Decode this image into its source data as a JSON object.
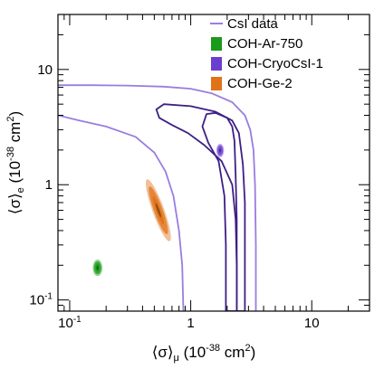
{
  "chart_data": {
    "type": "contour",
    "x_axis": {
      "label_main": "⟨σ⟩",
      "label_sub": "μ",
      "label_units": " (10",
      "label_exp": "-38",
      "label_tail": " cm",
      "label_tail_exp": "2",
      "label_close": ")",
      "scale": "log",
      "range": [
        0.08,
        30
      ],
      "major_ticks": [
        0.1,
        1,
        10
      ],
      "tick_labels": [
        "10",
        "1",
        "10"
      ],
      "tick_label_exps": [
        "-1",
        "",
        ""
      ]
    },
    "y_axis": {
      "label_main": "⟨σ⟩",
      "label_sub": "e",
      "label_units": " (10",
      "label_exp": "-38",
      "label_tail": " cm",
      "label_tail_exp": "2",
      "label_close": ")",
      "scale": "log",
      "range": [
        0.08,
        30
      ],
      "major_ticks": [
        0.1,
        1,
        10
      ],
      "tick_labels": [
        "10",
        "1",
        "10"
      ],
      "tick_label_exps": [
        "-1",
        "",
        ""
      ]
    },
    "legend": {
      "position": "top-right",
      "entries": [
        {
          "label": "CsI data",
          "kind": "line",
          "color": "#9a7de0"
        },
        {
          "label": "COH-Ar-750",
          "kind": "fill",
          "color": "#1a9a1a"
        },
        {
          "label": "COH-CryoCsI-1",
          "kind": "fill",
          "color": "#6a3fd0"
        },
        {
          "label": "COH-Ge-2",
          "kind": "fill",
          "color": "#e0731a"
        }
      ]
    },
    "series": [
      {
        "name": "CsI data",
        "kind": "contours",
        "contours": [
          {
            "level": "outer",
            "color": "#9a7de0",
            "points": [
              [
                0.08,
                7.3
              ],
              [
                0.15,
                7.3
              ],
              [
                0.3,
                7.25
              ],
              [
                0.6,
                7.1
              ],
              [
                1.0,
                6.8
              ],
              [
                1.5,
                6.2
              ],
              [
                2.2,
                5.2
              ],
              [
                2.8,
                4.0
              ],
              [
                3.1,
                3.0
              ],
              [
                3.3,
                2.0
              ],
              [
                3.4,
                1.0
              ],
              [
                3.45,
                0.3
              ],
              [
                3.45,
                0.08
              ]
            ]
          },
          {
            "level": "2",
            "color": "#9a7de0",
            "points": [
              [
                0.08,
                4.0
              ],
              [
                0.12,
                3.6
              ],
              [
                0.2,
                3.2
              ],
              [
                0.35,
                2.6
              ],
              [
                0.5,
                1.9
              ],
              [
                0.62,
                1.3
              ],
              [
                0.72,
                0.8
              ],
              [
                0.8,
                0.4
              ],
              [
                0.85,
                0.2
              ],
              [
                0.87,
                0.08
              ]
            ]
          },
          {
            "level": "3",
            "color": "#3d1f85",
            "closed": true,
            "points": [
              [
                0.52,
                4.5
              ],
              [
                0.6,
                5.0
              ],
              [
                1.0,
                4.8
              ],
              [
                1.6,
                4.3
              ],
              [
                2.2,
                3.6
              ],
              [
                2.5,
                2.8
              ],
              [
                2.7,
                1.5
              ],
              [
                2.8,
                0.7
              ],
              [
                2.8,
                0.2
              ],
              [
                2.8,
                0.08
              ],
              [
                2.4,
                0.08
              ],
              [
                2.4,
                0.2
              ],
              [
                2.35,
                0.5
              ],
              [
                2.2,
                1.0
              ],
              [
                1.8,
                1.6
              ],
              [
                1.3,
                2.2
              ],
              [
                0.95,
                2.8
              ],
              [
                0.7,
                3.3
              ],
              [
                0.55,
                3.8
              ]
            ]
          },
          {
            "level": "4",
            "color": "#3d1f85",
            "closed": true,
            "points": [
              [
                1.25,
                3.2
              ],
              [
                1.35,
                4.1
              ],
              [
                1.6,
                4.2
              ],
              [
                2.0,
                3.8
              ],
              [
                2.2,
                3.2
              ],
              [
                2.3,
                2.4
              ],
              [
                2.35,
                1.2
              ],
              [
                2.4,
                0.5
              ],
              [
                2.4,
                0.2
              ],
              [
                2.4,
                0.08
              ],
              [
                1.95,
                0.08
              ],
              [
                1.95,
                0.3
              ],
              [
                1.9,
                0.8
              ],
              [
                1.7,
                1.6
              ],
              [
                1.4,
                2.3
              ]
            ]
          }
        ]
      },
      {
        "name": "COH-Ar-750",
        "kind": "blob",
        "color": "#1a9a1a",
        "center": [
          0.17,
          0.19
        ],
        "rx_log": 0.025,
        "ry_log": 0.055
      },
      {
        "name": "COH-CryoCsI-1",
        "kind": "blob",
        "color": "#6a3fd0",
        "center": [
          1.75,
          1.98
        ],
        "rx_log": 0.02,
        "ry_log": 0.045
      },
      {
        "name": "COH-Ge-2",
        "kind": "blob",
        "color": "#e0731a",
        "center": [
          0.54,
          0.6
        ],
        "rx_log": 0.03,
        "ry_log": 0.22,
        "tilt": -20
      }
    ],
    "grid": false
  }
}
